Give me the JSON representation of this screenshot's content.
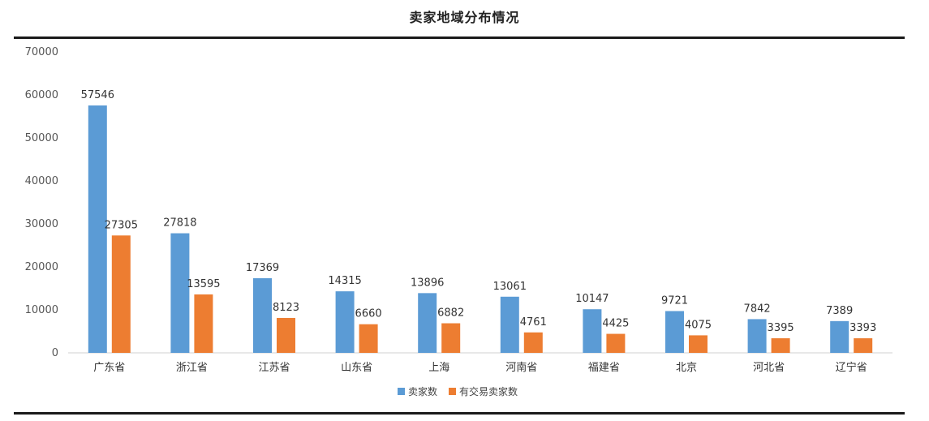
{
  "chart_data": {
    "type": "bar",
    "title": "卖家地域分布情况",
    "categories": [
      "广东省",
      "浙江省",
      "江苏省",
      "山东省",
      "上海",
      "河南省",
      "福建省",
      "北京",
      "河北省",
      "辽宁省"
    ],
    "series": [
      {
        "name": "卖家数",
        "color": "#5b9bd5",
        "values": [
          57546,
          27818,
          17369,
          14315,
          13896,
          13061,
          10147,
          9721,
          7842,
          7389
        ]
      },
      {
        "name": "有交易卖家数",
        "color": "#ed7d31",
        "values": [
          27305,
          13595,
          8123,
          6660,
          6882,
          4761,
          4425,
          4075,
          3395,
          3393
        ]
      }
    ],
    "yticks": [
      0,
      10000,
      20000,
      30000,
      40000,
      50000,
      60000,
      70000
    ],
    "ylim": [
      0,
      70000
    ],
    "xlabel": "",
    "ylabel": "",
    "grid": false,
    "legend": "bottom"
  }
}
